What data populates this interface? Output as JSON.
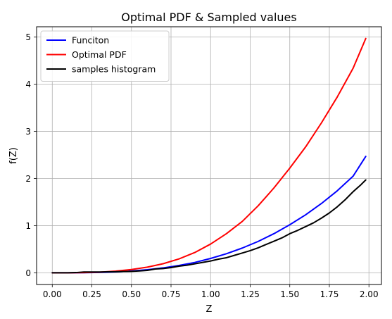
{
  "chart_data": {
    "type": "line",
    "title": "Optimal PDF & Sampled values",
    "xlabel": "Z",
    "ylabel": "f(Z)",
    "xlim": [
      -0.099,
      2.079
    ],
    "ylim": [
      -0.248,
      5.219
    ],
    "xticks": [
      0.0,
      0.25,
      0.5,
      0.75,
      1.0,
      1.25,
      1.5,
      1.75,
      2.0
    ],
    "xtick_labels": [
      "0.00",
      "0.25",
      "0.50",
      "0.75",
      "1.00",
      "1.25",
      "1.50",
      "1.75",
      "2.00"
    ],
    "yticks": [
      0,
      1,
      2,
      3,
      4,
      5
    ],
    "ytick_labels": [
      "0",
      "1",
      "2",
      "3",
      "4",
      "5"
    ],
    "grid": true,
    "legend_position": "upper-left",
    "series": [
      {
        "name": "Funciton",
        "color": "#0000ff",
        "x": [
          0.0,
          0.1,
          0.2,
          0.3,
          0.4,
          0.5,
          0.6,
          0.7,
          0.8,
          0.9,
          1.0,
          1.1,
          1.2,
          1.3,
          1.4,
          1.5,
          1.6,
          1.7,
          1.8,
          1.9,
          1.98
        ],
        "y": [
          0.0,
          0.0003,
          0.002,
          0.008,
          0.019,
          0.038,
          0.066,
          0.104,
          0.155,
          0.22,
          0.305,
          0.405,
          0.525,
          0.665,
          0.83,
          1.02,
          1.23,
          1.47,
          1.74,
          2.05,
          2.47
        ]
      },
      {
        "name": "Optimal PDF",
        "color": "#ff0000",
        "x": [
          0.0,
          0.1,
          0.2,
          0.3,
          0.4,
          0.5,
          0.6,
          0.7,
          0.8,
          0.9,
          1.0,
          1.1,
          1.2,
          1.3,
          1.4,
          1.5,
          1.6,
          1.7,
          1.8,
          1.9,
          1.98
        ],
        "y": [
          0.0,
          0.0005,
          0.004,
          0.014,
          0.035,
          0.069,
          0.12,
          0.193,
          0.294,
          0.43,
          0.61,
          0.83,
          1.09,
          1.42,
          1.8,
          2.22,
          2.67,
          3.18,
          3.73,
          4.34,
          4.97
        ]
      },
      {
        "name": "samples histogram",
        "color": "#000000",
        "x": [
          0.0,
          0.05,
          0.1,
          0.15,
          0.2,
          0.25,
          0.3,
          0.35,
          0.4,
          0.45,
          0.5,
          0.55,
          0.6,
          0.65,
          0.7,
          0.75,
          0.8,
          0.85,
          0.9,
          0.95,
          1.0,
          1.05,
          1.1,
          1.15,
          1.2,
          1.25,
          1.3,
          1.35,
          1.4,
          1.45,
          1.5,
          1.55,
          1.6,
          1.65,
          1.7,
          1.75,
          1.8,
          1.85,
          1.9,
          1.95,
          1.98
        ],
        "y": [
          0.0,
          0.0,
          0.0,
          0.005,
          0.018,
          0.018,
          0.018,
          0.02,
          0.022,
          0.028,
          0.03,
          0.04,
          0.05,
          0.08,
          0.09,
          0.11,
          0.14,
          0.16,
          0.19,
          0.22,
          0.25,
          0.29,
          0.32,
          0.37,
          0.42,
          0.47,
          0.53,
          0.6,
          0.67,
          0.74,
          0.83,
          0.9,
          0.98,
          1.06,
          1.16,
          1.27,
          1.4,
          1.55,
          1.72,
          1.87,
          1.97
        ]
      }
    ]
  }
}
